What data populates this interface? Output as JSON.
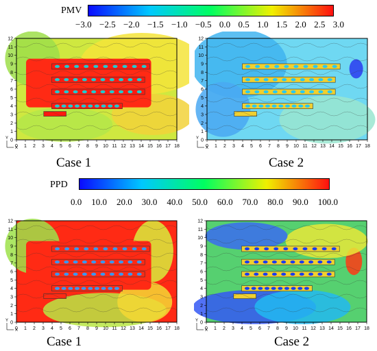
{
  "top": {
    "colorbar": {
      "label": "PMV",
      "ticks": [
        "−3.0",
        "−2.5",
        "−2.0",
        "−1.5",
        "−1.0",
        "−0.5",
        "0.0",
        "0.5",
        "1.0",
        "1.5",
        "2.0",
        "2.5",
        "3.0"
      ],
      "colors": [
        "#0a0aff",
        "#00c8ff",
        "#00ff60",
        "#f0f000",
        "#ff1010"
      ]
    },
    "panels": [
      {
        "title": "Case 1",
        "scheme": "pmv1"
      },
      {
        "title": "Case 2",
        "scheme": "pmv2"
      }
    ]
  },
  "bottom": {
    "colorbar": {
      "label": "PPD",
      "ticks": [
        "0.0",
        "10.0",
        "20.0",
        "30.0",
        "40.0",
        "50.0",
        "60.0",
        "70.0",
        "80.0",
        "90.0",
        "100.0"
      ],
      "colors": [
        "#0a0aff",
        "#00c8ff",
        "#00ff60",
        "#f0f000",
        "#ff1010"
      ]
    },
    "panels": [
      {
        "title": "Case 1",
        "scheme": "ppd1"
      },
      {
        "title": "Case 2",
        "scheme": "ppd2"
      }
    ]
  },
  "axes": {
    "x_ticks": [
      "0",
      "1",
      "2",
      "3",
      "4",
      "5",
      "6",
      "7",
      "8",
      "9",
      "10",
      "11",
      "12",
      "13",
      "14",
      "15",
      "16",
      "17",
      "18"
    ],
    "y_ticks": [
      "0",
      "1",
      "2",
      "3",
      "4",
      "5",
      "6",
      "7",
      "8",
      "9",
      "10",
      "11",
      "12"
    ],
    "x_label": "X",
    "y_label": "Y"
  }
}
